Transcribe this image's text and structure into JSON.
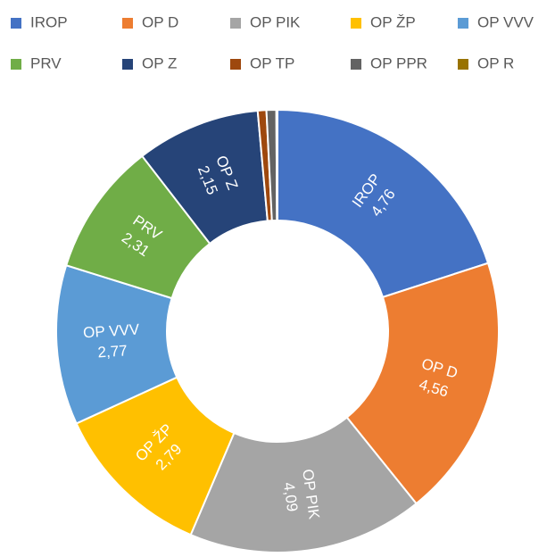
{
  "chart_data": {
    "type": "donut",
    "categories": [
      "IROP",
      "OP D",
      "OP PIK",
      "OP ŽP",
      "OP VVV",
      "PRV",
      "OP Z",
      "OP TP",
      "OP PPR",
      "OP R"
    ],
    "values": [
      4.76,
      4.56,
      4.09,
      2.79,
      2.77,
      2.31,
      2.15,
      0.15,
      0.17,
      0.02
    ],
    "value_labels": [
      "4,76",
      "4,56",
      "4,09",
      "2,79",
      "2,77",
      "2,31",
      "2,15",
      null,
      null,
      null
    ],
    "colors": [
      "#4472c4",
      "#ed7d31",
      "#a5a5a5",
      "#ffc000",
      "#5b9bd5",
      "#70ad47",
      "#264478",
      "#9e480e",
      "#636363",
      "#997300"
    ],
    "legend": "top"
  }
}
